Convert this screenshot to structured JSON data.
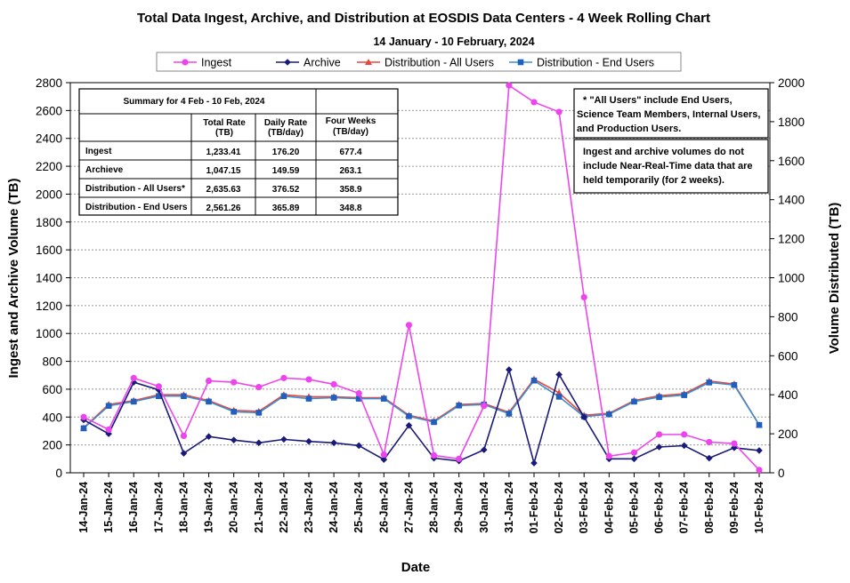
{
  "chart_data": {
    "type": "line",
    "title": "Total Data Ingest, Archive, and  Distribution at EOSDIS Data Centers - 4 Week Rolling Chart",
    "subtitle": "14 January  - 10 February, 2024",
    "xlabel": "Date",
    "ylabel_left": "Ingest and Archive Volume (TB)",
    "ylabel_right": "Volume Distributed (TB)",
    "ylim_left": [
      0,
      2800
    ],
    "ylim_right": [
      0,
      2000
    ],
    "left_ticks": [
      "0",
      "200",
      "400",
      "600",
      "800",
      "1000",
      "1200",
      "1400",
      "1600",
      "1800",
      "2000",
      "2200",
      "2400",
      "2600",
      "2800"
    ],
    "right_ticks": [
      "0",
      "200",
      "400",
      "600",
      "800",
      "1000",
      "1200",
      "1400",
      "1600",
      "1800",
      "2000"
    ],
    "grid": true,
    "legend_position": "top",
    "categories": [
      "14-Jan-24",
      "15-Jan-24",
      "16-Jan-24",
      "17-Jan-24",
      "18-Jan-24",
      "19-Jan-24",
      "20-Jan-24",
      "21-Jan-24",
      "22-Jan-24",
      "23-Jan-24",
      "24-Jan-24",
      "25-Jan-24",
      "26-Jan-24",
      "27-Jan-24",
      "28-Jan-24",
      "29-Jan-24",
      "30-Jan-24",
      "31-Jan-24",
      "01-Feb-24",
      "02-Feb-24",
      "03-Feb-24",
      "04-Feb-24",
      "05-Feb-24",
      "06-Feb-24",
      "07-Feb-24",
      "08-Feb-24",
      "09-Feb-24",
      "10-Feb-24"
    ],
    "series": [
      {
        "name": "Ingest",
        "axis": "left",
        "color": "#ee44ee",
        "marker": "circle",
        "values": [
          400,
          310,
          680,
          620,
          265,
          660,
          650,
          615,
          680,
          670,
          635,
          570,
          130,
          1060,
          125,
          100,
          480,
          2780,
          2660,
          2590,
          1260,
          120,
          145,
          275,
          275,
          220,
          210,
          20
        ]
      },
      {
        "name": "Archive",
        "axis": "left",
        "color": "#1a1a7a",
        "marker": "diamond",
        "values": [
          380,
          280,
          650,
          595,
          140,
          260,
          235,
          215,
          240,
          225,
          215,
          195,
          95,
          340,
          105,
          85,
          165,
          740,
          70,
          705,
          400,
          100,
          100,
          185,
          195,
          105,
          180,
          160
        ]
      },
      {
        "name": "Distribution - All Users",
        "axis": "right",
        "color": "#e8453c",
        "marker": "triangle",
        "values": [
          230,
          350,
          370,
          400,
          400,
          370,
          320,
          315,
          400,
          390,
          390,
          385,
          385,
          295,
          265,
          350,
          355,
          310,
          480,
          410,
          295,
          305,
          370,
          395,
          405,
          470,
          455,
          245
        ]
      },
      {
        "name": "Distribution - End Users",
        "axis": "right",
        "color": "#1f5fbf",
        "line_color": "#3b8fd0",
        "marker": "square",
        "values": [
          228,
          343,
          365,
          393,
          393,
          365,
          313,
          308,
          393,
          380,
          385,
          380,
          380,
          290,
          260,
          345,
          350,
          303,
          473,
          390,
          288,
          300,
          365,
          388,
          398,
          463,
          450,
          245
        ]
      }
    ],
    "summary_table": {
      "caption": "Summary  for  4  Feb   - 10  Feb, 2024",
      "headers": [
        "Total Rate",
        "(TB)",
        "Daily Rate",
        "(TB/day)",
        "Four Weeks",
        "(TB/day)"
      ],
      "rows": [
        {
          "label": "Ingest",
          "total": "1,233.41",
          "daily": "176.20",
          "four": "677.4"
        },
        {
          "label": "Archieve",
          "total": "1,047.15",
          "daily": "149.59",
          "four": "263.1"
        },
        {
          "label": "Distribution - All Users*",
          "total": "2,635.63",
          "daily": "376.52",
          "four": "358.9"
        },
        {
          "label": "Distribution - End Users",
          "total": "2,561.26",
          "daily": "365.89",
          "four": "348.8"
        }
      ]
    },
    "notes": {
      "box1": [
        "* \"All Users\" include End Users,",
        "Science Team Members,  Internal Users,",
        "and Production Users."
      ],
      "box2": [
        "Ingest and archive volumes do not",
        "include Near-Real-Time data that are",
        "held temporarily (for 2 weeks)."
      ]
    }
  }
}
